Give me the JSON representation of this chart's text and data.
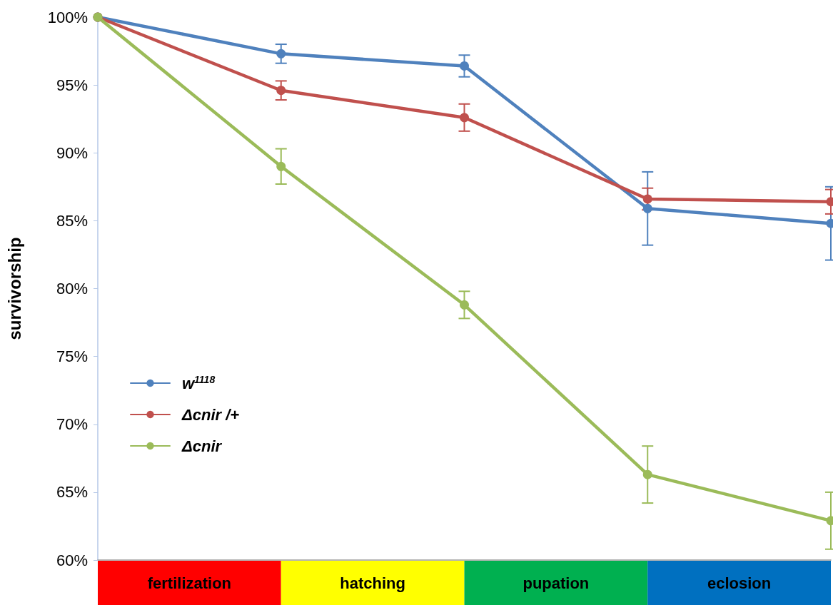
{
  "chart_data": {
    "type": "line",
    "ylabel": "survivorship",
    "categories": [
      null,
      null,
      null,
      null,
      null
    ],
    "ylim": [
      60,
      100
    ],
    "yticks": [
      {
        "value": 60,
        "label": "60%"
      },
      {
        "value": 65,
        "label": "65%"
      },
      {
        "value": 70,
        "label": "70%"
      },
      {
        "value": 75,
        "label": "75%"
      },
      {
        "value": 80,
        "label": "80%"
      },
      {
        "value": 85,
        "label": "85%"
      },
      {
        "value": 90,
        "label": "90%"
      },
      {
        "value": 95,
        "label": "95%"
      },
      {
        "value": 100,
        "label": "100%"
      }
    ],
    "tick_labels": "y",
    "grid": false,
    "legend": "center left",
    "marker": "circle",
    "line_style": "solid",
    "series": [
      {
        "name": "w$^{1118}$",
        "color": "#4f81bd",
        "values": [
          100,
          97.3,
          96.4,
          85.9,
          84.8
        ],
        "errors": [
          null,
          0.7,
          0.8,
          2.7,
          2.7
        ]
      },
      {
        "name": "Δcnir /+",
        "color": "#c0504d",
        "values": [
          100,
          94.6,
          92.6,
          86.6,
          86.4
        ],
        "errors": [
          null,
          0.7,
          1.0,
          0.8,
          0.9
        ]
      },
      {
        "name": "Δcnir",
        "color": "#9bbb59",
        "values": [
          100,
          89.0,
          78.8,
          66.3,
          62.9
        ],
        "errors": [
          null,
          1.3,
          1.0,
          2.1,
          2.1
        ]
      }
    ],
    "annotations": [
      "fertilization",
      "hatching",
      "pupation",
      "eclosion"
    ]
  }
}
